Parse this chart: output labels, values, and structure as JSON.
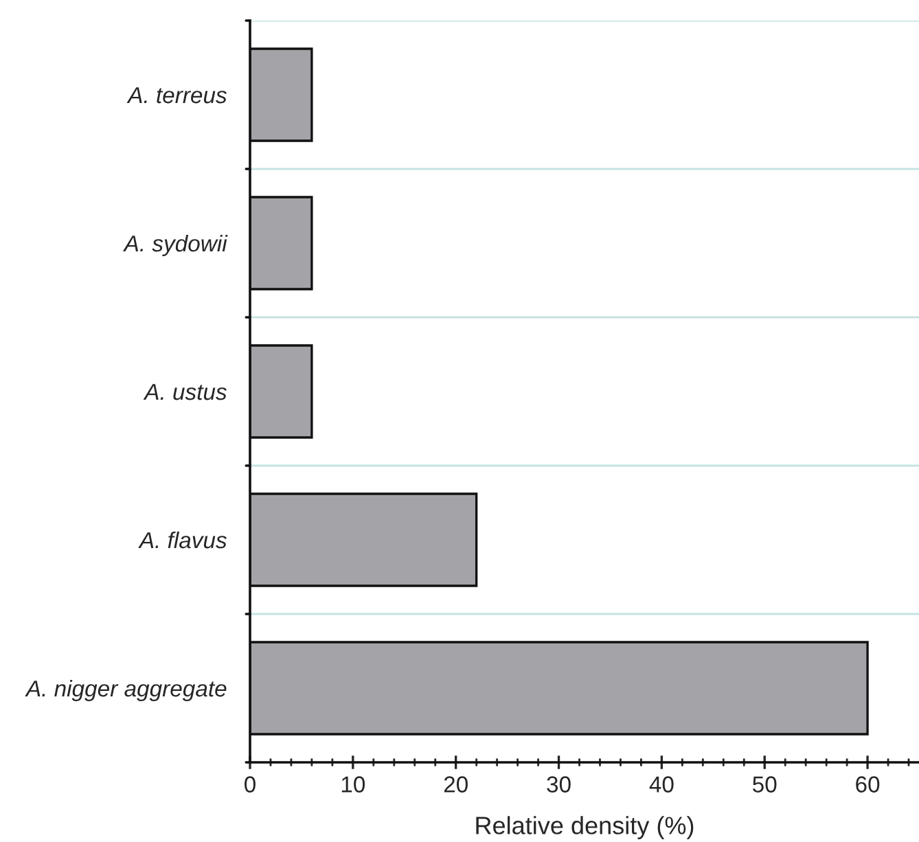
{
  "chart_data": {
    "type": "bar",
    "orientation": "horizontal",
    "xlabel": "Relative density (%)",
    "categories": [
      "A. terreus",
      "A. sydowii",
      "A. ustus",
      "A. flavus",
      "A. nigger aggregate"
    ],
    "values": [
      6,
      6,
      6,
      22,
      60
    ],
    "color": "#a3a3a8",
    "xlim": [
      0,
      65
    ],
    "xticks": [
      0,
      10,
      20,
      30,
      40,
      50,
      60
    ],
    "grid": "y"
  }
}
